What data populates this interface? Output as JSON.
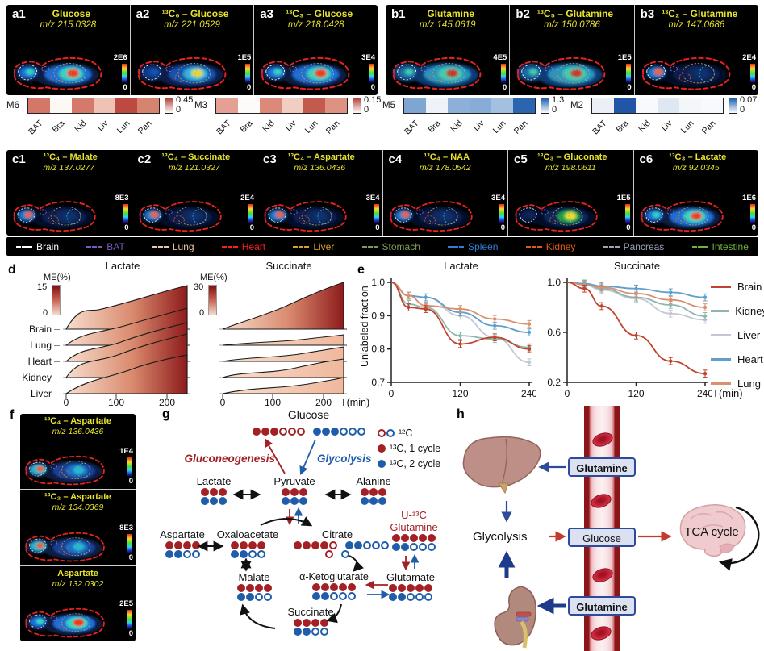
{
  "figure": {
    "panels_a": [
      {
        "tag": "a1",
        "name": "Glucose",
        "mz": "m/z 215.0328",
        "scale_max": "2E6",
        "scale_min": "0",
        "variant": "mv-hot"
      },
      {
        "tag": "a2",
        "name": "¹³C₆ – Glucose",
        "mz": "m/z 221.0529",
        "scale_max": "1E5",
        "scale_min": "0",
        "variant": "mv-mid"
      },
      {
        "tag": "a3",
        "name": "¹³C₃ – Glucose",
        "mz": "m/z 218.0428",
        "scale_max": "3E4",
        "scale_min": "0",
        "variant": "mv-hot"
      }
    ],
    "panels_b": [
      {
        "tag": "b1",
        "name": "Glutamine",
        "mz": "m/z 145.0619",
        "scale_max": "4E5",
        "scale_min": "0",
        "variant": "mv-cool"
      },
      {
        "tag": "b2",
        "name": "¹³C₅ – Glutamine",
        "mz": "m/z 150.0786",
        "scale_max": "1E5",
        "scale_min": "0",
        "variant": "mv-cool"
      },
      {
        "tag": "b3",
        "name": "¹³C₂ – Glutamine",
        "mz": "m/z 147.0686",
        "scale_max": "2E4",
        "scale_min": "0",
        "variant": "mv-dark"
      }
    ],
    "panels_c": [
      {
        "tag": "c1",
        "name": "¹³C₄ – Malate",
        "mz": "m/z 137.0277",
        "scale_max": "8E3",
        "scale_min": "0",
        "variant": "mv-dark"
      },
      {
        "tag": "c2",
        "name": "¹³C₄ – Succinate",
        "mz": "m/z 121.0327",
        "scale_max": "2E4",
        "scale_min": "0",
        "variant": "mv-dark"
      },
      {
        "tag": "c3",
        "name": "¹³C₄ – Aspartate",
        "mz": "m/z 136.0436",
        "scale_max": "3E4",
        "scale_min": "0",
        "variant": "mv-dark"
      },
      {
        "tag": "c4",
        "name": "¹³C₄ – NAA",
        "mz": "m/z 178.0542",
        "scale_max": "3E4",
        "scale_min": "0",
        "variant": "mv-dark"
      },
      {
        "tag": "c5",
        "name": "¹³C₃ – Gluconate",
        "mz": "m/z 198.0611",
        "scale_max": "1E5",
        "scale_min": "0",
        "variant": "mv-center"
      },
      {
        "tag": "c6",
        "name": "¹³C₃ – Lactate",
        "mz": "m/z 92.0345",
        "scale_max": "1E6",
        "scale_min": "0",
        "variant": "mv-hot"
      }
    ],
    "panels_f": [
      {
        "name": "¹³C₄ – Aspartate",
        "mz": "m/z 136.0436",
        "scale_max": "1E4",
        "scale_min": "0",
        "variant": "mv-f2"
      },
      {
        "name": "¹³C₂ – Aspartate",
        "mz": "m/z 134.0369",
        "scale_max": "8E3",
        "scale_min": "0",
        "variant": "mv-f2"
      },
      {
        "name": "Aspartate",
        "mz": "m/z 132.0302",
        "scale_max": "2E5",
        "scale_min": "0",
        "variant": "mv-hot"
      }
    ],
    "f_tag": "f"
  },
  "heatmaps": {
    "tissues": [
      "BAT",
      "Bra",
      "Kid",
      "Liv",
      "Lun",
      "Pan"
    ],
    "strips": [
      {
        "label": "M6",
        "scale_max": "0.45",
        "scale_min": "0",
        "palette": "mini-red",
        "c0": "#d47768",
        "c1": "#fcf8f6",
        "c2": "#d57a6a",
        "c3": "#eec3b6",
        "c4": "#bc4a40",
        "c5": "#d6836f"
      },
      {
        "label": "M3",
        "scale_max": "0.15",
        "scale_min": "0",
        "palette": "mini-red",
        "c0": "#e4a092",
        "c1": "#fdfbfa",
        "c2": "#dc897a",
        "c3": "#f1cdc2",
        "c4": "#c25a4e",
        "c5": "#de9283"
      },
      {
        "label": "M5",
        "scale_max": "1.3",
        "scale_min": "0",
        "palette": "mini-blue",
        "c0": "#7fa6d2",
        "c1": "#eef3f9",
        "c2": "#8cb0d8",
        "c3": "#87acd6",
        "c4": "#a3c0e0",
        "c5": "#2b65b0"
      },
      {
        "label": "M2",
        "scale_max": "0.07",
        "scale_min": "0",
        "palette": "mini-blue",
        "c0": "#ebf0f7",
        "c1": "#2156a6",
        "c2": "#f7f9fc",
        "c3": "#dfe8f2",
        "c4": "#f4f7fa",
        "c5": "#f7f9fc"
      }
    ]
  },
  "tissue_legend": [
    {
      "name": "Brain",
      "color": "#ffffff"
    },
    {
      "name": "BAT",
      "color": "#7c5bc0"
    },
    {
      "name": "Lung",
      "color": "#e9c9a2"
    },
    {
      "name": "Heart",
      "color": "#ff1f1f"
    },
    {
      "name": "Liver",
      "color": "#d8a31c"
    },
    {
      "name": "Stomach",
      "color": "#7a9e56"
    },
    {
      "name": "Spleen",
      "color": "#2f7fd8"
    },
    {
      "name": "Kidney",
      "color": "#e55a10"
    },
    {
      "name": "Pancreas",
      "color": "#9aa3b8"
    },
    {
      "name": "Intestine",
      "color": "#6fb43a"
    }
  ],
  "panel_d": {
    "tag": "d",
    "charts": [
      {
        "title": "Lactate",
        "cbar_label": "ME(%)",
        "cbar_max": "15",
        "cbar_min": "0"
      },
      {
        "title": "Succinate",
        "cbar_label": "ME(%)",
        "cbar_max": "30",
        "cbar_min": "0"
      }
    ],
    "organs": [
      "Brain",
      "Lung",
      "Heart",
      "Kidney",
      "Liver"
    ],
    "xticks": [
      "0",
      "100",
      "200"
    ],
    "xlabel": "T(min)"
  },
  "panel_e": {
    "tag": "e",
    "ylabel": "Unlabeled fraction",
    "xlabel": "T(min)",
    "legend": [
      {
        "name": "Brain",
        "color": "#c0432e"
      },
      {
        "name": "Kidney",
        "color": "#8fb6ac"
      },
      {
        "name": "Liver",
        "color": "#c3c8d5"
      },
      {
        "name": "Heart",
        "color": "#5f9fcb"
      },
      {
        "name": "Lung",
        "color": "#d8906e"
      }
    ]
  },
  "chart_data": [
    {
      "id": "e-lactate",
      "type": "line",
      "title": "Lactate",
      "ylabel": "Unlabeled fraction",
      "xlabel": "T(min)",
      "ylim": [
        0.7,
        1.0
      ],
      "yticks": [
        1.0,
        0.9,
        0.8,
        0.7
      ],
      "x": [
        0,
        30,
        60,
        120,
        180,
        240
      ],
      "xticks": [
        0,
        120,
        240
      ],
      "series": [
        {
          "name": "Liver",
          "color": "#c3c8d5",
          "values": [
            1.0,
            0.96,
            0.955,
            0.9,
            0.835,
            0.76
          ]
        },
        {
          "name": "Kidney",
          "color": "#8fb6ac",
          "values": [
            1.0,
            0.935,
            0.925,
            0.84,
            0.83,
            0.805
          ]
        },
        {
          "name": "Heart",
          "color": "#5f9fcb",
          "values": [
            1.0,
            0.96,
            0.955,
            0.91,
            0.87,
            0.85
          ]
        },
        {
          "name": "Lung",
          "color": "#d8906e",
          "values": [
            1.0,
            0.96,
            0.93,
            0.92,
            0.89,
            0.875
          ]
        },
        {
          "name": "Brain",
          "color": "#c0432e",
          "values": [
            1.0,
            0.925,
            0.92,
            0.815,
            0.835,
            0.8
          ]
        }
      ]
    },
    {
      "id": "e-succinate",
      "type": "line",
      "title": "Succinate",
      "xlabel": "T(min)",
      "ylim": [
        0.2,
        1.0
      ],
      "yticks": [
        1.0,
        0.6,
        0.2
      ],
      "x": [
        0,
        30,
        60,
        120,
        180,
        240
      ],
      "xticks": [
        0,
        120,
        240
      ],
      "series": [
        {
          "name": "Liver",
          "color": "#c3c8d5",
          "values": [
            1.0,
            0.98,
            0.94,
            0.87,
            0.75,
            0.7
          ]
        },
        {
          "name": "Kidney",
          "color": "#8fb6ac",
          "values": [
            1.0,
            0.99,
            0.95,
            0.88,
            0.82,
            0.73
          ]
        },
        {
          "name": "Heart",
          "color": "#5f9fcb",
          "values": [
            1.0,
            0.99,
            0.97,
            0.95,
            0.92,
            0.88
          ]
        },
        {
          "name": "Lung",
          "color": "#d8906e",
          "values": [
            1.0,
            0.98,
            0.96,
            0.91,
            0.86,
            0.8
          ]
        },
        {
          "name": "Brain",
          "color": "#c0432e",
          "values": [
            1.0,
            0.95,
            0.81,
            0.575,
            0.37,
            0.27
          ]
        }
      ]
    },
    {
      "id": "d-lactate",
      "type": "area",
      "title": "Lactate",
      "colorbar": {
        "label": "ME(%)",
        "max": 15,
        "min": 0
      },
      "x": [
        0,
        60,
        120,
        180,
        240
      ],
      "xticks": [
        0,
        100,
        200
      ],
      "xlabel": "T(min)",
      "organs": [
        "Brain",
        "Lung",
        "Heart",
        "Kidney",
        "Liver"
      ],
      "series": [
        {
          "name": "Brain",
          "values": [
            0,
            5,
            8,
            12,
            15
          ]
        },
        {
          "name": "Lung",
          "values": [
            0,
            2,
            5,
            8,
            11
          ]
        },
        {
          "name": "Heart",
          "values": [
            0,
            3,
            6,
            9,
            12
          ]
        },
        {
          "name": "Kidney",
          "values": [
            0,
            4,
            7,
            10,
            13
          ]
        },
        {
          "name": "Liver",
          "values": [
            0,
            2,
            4,
            7,
            10
          ]
        }
      ]
    },
    {
      "id": "d-succinate",
      "type": "area",
      "title": "Succinate",
      "colorbar": {
        "label": "ME(%)",
        "max": 30,
        "min": 0
      },
      "x": [
        0,
        60,
        120,
        180,
        240
      ],
      "xticks": [
        0,
        100,
        200
      ],
      "xlabel": "T(min)",
      "organs": [
        "Brain",
        "Lung",
        "Heart",
        "Kidney",
        "Liver"
      ],
      "series": [
        {
          "name": "Brain",
          "values": [
            0,
            6,
            14,
            24,
            32
          ]
        },
        {
          "name": "Lung",
          "values": [
            0,
            1,
            2,
            3,
            4
          ]
        },
        {
          "name": "Heart",
          "values": [
            0,
            1,
            2,
            3,
            5
          ]
        },
        {
          "name": "Kidney",
          "values": [
            0,
            1,
            3,
            5,
            7
          ]
        },
        {
          "name": "Liver",
          "values": [
            0,
            1,
            2,
            4,
            6
          ]
        }
      ]
    },
    {
      "id": "M6",
      "type": "heatmap",
      "categories": [
        "BAT",
        "Bra",
        "Kid",
        "Liv",
        "Lun",
        "Pan"
      ],
      "values": [
        0.25,
        0.01,
        0.26,
        0.12,
        0.38,
        0.26
      ],
      "scale": [
        0,
        0.45
      ]
    },
    {
      "id": "M3",
      "type": "heatmap",
      "categories": [
        "BAT",
        "Bra",
        "Kid",
        "Liv",
        "Lun",
        "Pan"
      ],
      "values": [
        0.06,
        0.005,
        0.08,
        0.04,
        0.12,
        0.07
      ],
      "scale": [
        0,
        0.15
      ]
    },
    {
      "id": "M5",
      "type": "heatmap",
      "categories": [
        "BAT",
        "Bra",
        "Kid",
        "Liv",
        "Lun",
        "Pan"
      ],
      "values": [
        0.6,
        0.1,
        0.6,
        0.6,
        0.45,
        1.25
      ],
      "scale": [
        0,
        1.3
      ]
    },
    {
      "id": "M2",
      "type": "heatmap",
      "categories": [
        "BAT",
        "Bra",
        "Kid",
        "Liv",
        "Lun",
        "Pan"
      ],
      "values": [
        0.008,
        0.065,
        0.004,
        0.012,
        0.004,
        0.004
      ],
      "scale": [
        0,
        0.07
      ]
    }
  ],
  "pathway": {
    "tag": "g",
    "legend": [
      {
        "dots": [
          "RB"
        ],
        "label": "¹²C"
      },
      {
        "dots": [
          "r"
        ],
        "label": "¹³C, 1 cycle"
      },
      {
        "dots": [
          "b"
        ],
        "label": "¹³C, 2 cycle"
      }
    ],
    "gluconeogenesis": "Gluconeogenesis",
    "glycolysis": "Glycolysis",
    "u13c_line1": "U-¹³C",
    "u13c_line2": "Glutamine",
    "nodes": {
      "glucose": {
        "label": "Glucose",
        "dots": [
          "rrrRRR bbbBBB"
        ]
      },
      "lactate": {
        "label": "Lactate",
        "dots": [
          "rrr",
          "bbb"
        ]
      },
      "pyruvate": {
        "label": "Pyruvate",
        "dots": [
          "rrr",
          "bbb"
        ]
      },
      "alanine": {
        "label": "Alanine",
        "dots": [
          "rrr",
          "bbb"
        ]
      },
      "aspartate": {
        "label": "Aspartate",
        "dots": [
          "rrrr",
          "bbBB"
        ]
      },
      "oxaloacetate": {
        "label": "Oxaloacetate",
        "dots": [
          "rrrr",
          "bbBB"
        ]
      },
      "citrate": {
        "label": "Citrate",
        "dots": [
          "rrrrR bbBBB",
          "R B"
        ]
      },
      "malate": {
        "label": "Malate",
        "dots": [
          "rrrr",
          "bbBB"
        ]
      },
      "succinate": {
        "label": "Succinate",
        "dots": [
          "rrrr",
          "bbBB"
        ]
      },
      "akg": {
        "label": "α-Ketoglutarate",
        "dots": [
          "rrrrr",
          "bbBBB"
        ]
      },
      "glutamate": {
        "label": "Glutamate",
        "dots": [
          "rrrrr",
          "bbBBB"
        ]
      },
      "glutamine": {
        "dots": [
          "rrrrr",
          "bbBBB"
        ]
      }
    }
  },
  "panel_h": {
    "tag": "h",
    "box_top": "Glutamine",
    "box_mid": "Glucose",
    "box_bottom": "Glutamine",
    "glycolysis": "Glycolysis",
    "tca": "TCA cycle"
  }
}
